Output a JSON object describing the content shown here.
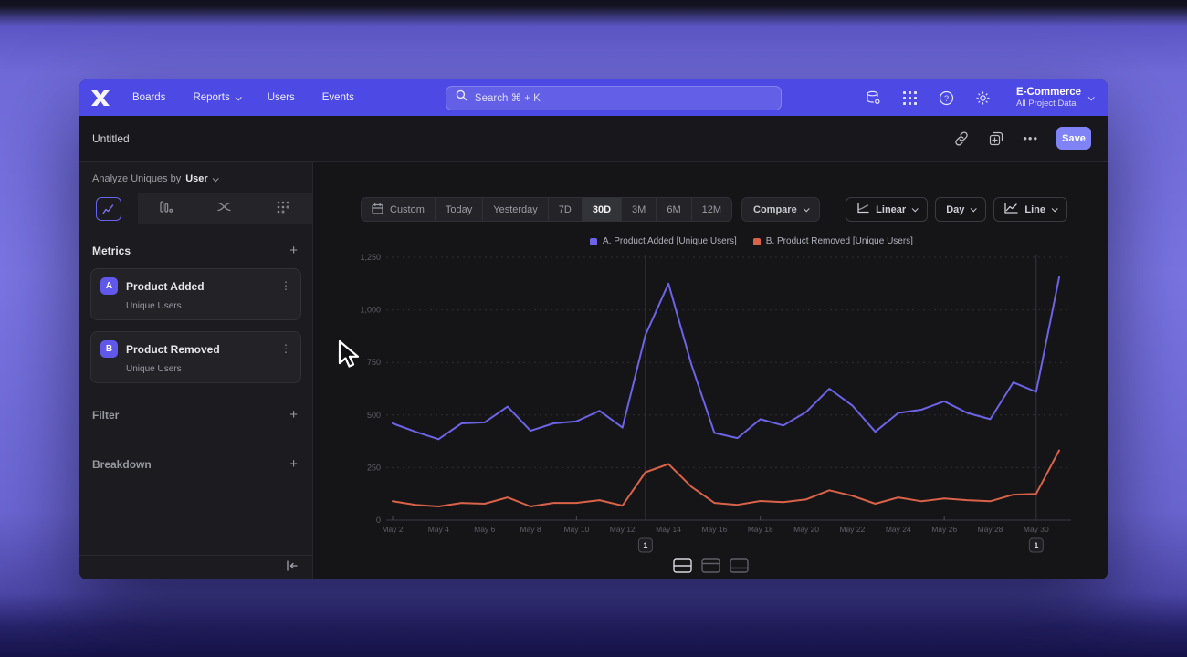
{
  "navbar": {
    "nav_items": [
      {
        "label": "Boards",
        "chevron": false
      },
      {
        "label": "Reports",
        "chevron": true
      },
      {
        "label": "Users",
        "chevron": false
      },
      {
        "label": "Events",
        "chevron": false
      }
    ],
    "search_placeholder": "Search  ⌘ + K",
    "project_name": "E-Commerce",
    "project_scope": "All Project Data"
  },
  "doc_header": {
    "title": "Untitled",
    "save_label": "Save"
  },
  "sidebar": {
    "analyze_prefix": "Analyze Uniques by",
    "analyze_value": "User",
    "metrics_label": "Metrics",
    "metrics": [
      {
        "letter": "A",
        "name": "Product Added",
        "sub": "Unique Users"
      },
      {
        "letter": "B",
        "name": "Product Removed",
        "sub": "Unique Users"
      }
    ],
    "filter_label": "Filter",
    "breakdown_label": "Breakdown"
  },
  "toolbar": {
    "ranges": [
      "Custom",
      "Today",
      "Yesterday",
      "7D",
      "30D",
      "3M",
      "6M",
      "12M"
    ],
    "selected_range": "30D",
    "compare_label": "Compare",
    "scale_label": "Linear",
    "interval_label": "Day",
    "chart_type_label": "Line"
  },
  "legend": [
    {
      "label": "A. Product Added [Unique Users]",
      "color": "#6c63e6"
    },
    {
      "label": "B. Product Removed [Unique Users]",
      "color": "#d96248"
    }
  ],
  "chart_data": {
    "type": "line",
    "title": "",
    "x": [
      "May 2",
      "May 3",
      "May 4",
      "May 5",
      "May 6",
      "May 7",
      "May 8",
      "May 9",
      "May 10",
      "May 11",
      "May 12",
      "May 13",
      "May 14",
      "May 15",
      "May 16",
      "May 17",
      "May 18",
      "May 19",
      "May 20",
      "May 21",
      "May 22",
      "May 23",
      "May 24",
      "May 25",
      "May 26",
      "May 27",
      "May 28",
      "May 29",
      "May 30",
      "May 31"
    ],
    "x_tick_labels": [
      "May 2",
      "May 4",
      "May 6",
      "May 8",
      "May 10",
      "May 12",
      "May 14",
      "May 16",
      "May 18",
      "May 20",
      "May 22",
      "May 24",
      "May 26",
      "May 28",
      "May 30"
    ],
    "series": [
      {
        "name": "A. Product Added [Unique Users]",
        "color": "#6c63e6",
        "values": [
          460,
          420,
          385,
          460,
          465,
          540,
          425,
          460,
          470,
          520,
          440,
          880,
          1125,
          740,
          415,
          390,
          480,
          450,
          515,
          625,
          545,
          420,
          510,
          525,
          565,
          510,
          480,
          655,
          610,
          1155
        ]
      },
      {
        "name": "B. Product Removed [Unique Users]",
        "color": "#d96248",
        "values": [
          90,
          73,
          65,
          82,
          78,
          108,
          65,
          82,
          82,
          95,
          69,
          228,
          267,
          159,
          82,
          73,
          91,
          86,
          99,
          142,
          116,
          78,
          108,
          90,
          103,
          95,
          90,
          121,
          125,
          332
        ]
      }
    ],
    "ylim": [
      0,
      1250
    ],
    "yticks": [
      0,
      250,
      500,
      750,
      1000,
      1250
    ],
    "ytick_labels": [
      "0",
      "250",
      "500",
      "750",
      "1,000",
      "1,250"
    ],
    "grid": "dashed-horizontal",
    "legend_position": "top-center",
    "annotations": [
      {
        "x_index": 11,
        "x": "May 13",
        "label": "1"
      },
      {
        "x_index": 28,
        "x": "May 30",
        "label": "1"
      }
    ]
  }
}
